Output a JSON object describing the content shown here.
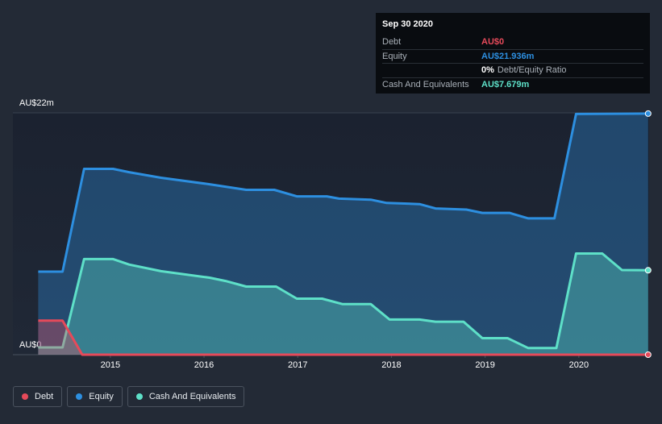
{
  "chart_data": {
    "type": "area-line",
    "xlim": [
      2013.96,
      2020.75
    ],
    "xticks": [
      2015,
      2016,
      2017,
      2018,
      2019,
      2020
    ],
    "ylim": [
      0,
      22
    ],
    "yticks": [
      {
        "value": 22,
        "label": "AU$22m"
      },
      {
        "value": 0,
        "label": "AU$0"
      }
    ],
    "series": [
      {
        "name": "Debt",
        "color": "#e64a5a",
        "x": [
          2014.23,
          2014.49,
          2014.7,
          2020.74
        ],
        "values": [
          3.1,
          3.1,
          0,
          0
        ]
      },
      {
        "name": "Equity",
        "color": "#2d8fe0",
        "x": [
          2014.23,
          2014.49,
          2014.72,
          2015.03,
          2015.2,
          2015.54,
          2016.06,
          2016.45,
          2016.75,
          2016.99,
          2017.31,
          2017.44,
          2017.78,
          2017.95,
          2018.3,
          2018.47,
          2018.8,
          2018.97,
          2019.26,
          2019.46,
          2019.74,
          2019.97,
          2020.74
        ],
        "values": [
          7.55,
          7.55,
          16.9,
          16.9,
          16.6,
          16.1,
          15.5,
          15.0,
          15.0,
          14.4,
          14.4,
          14.2,
          14.1,
          13.8,
          13.7,
          13.3,
          13.2,
          12.9,
          12.9,
          12.4,
          12.4,
          21.9,
          21.936
        ]
      },
      {
        "name": "Cash And Equivalents",
        "color": "#5ee0c8",
        "x": [
          2014.23,
          2014.49,
          2014.72,
          2015.03,
          2015.2,
          2015.54,
          2016.06,
          2016.23,
          2016.45,
          2016.77,
          2016.99,
          2017.26,
          2017.48,
          2017.78,
          2017.98,
          2018.3,
          2018.47,
          2018.77,
          2018.97,
          2019.24,
          2019.46,
          2019.76,
          2019.97,
          2020.25,
          2020.46,
          2020.74
        ],
        "values": [
          0.66,
          0.66,
          8.7,
          8.7,
          8.2,
          7.6,
          7.0,
          6.7,
          6.2,
          6.2,
          5.1,
          5.1,
          4.6,
          4.6,
          3.2,
          3.2,
          3.0,
          3.0,
          1.5,
          1.5,
          0.6,
          0.6,
          9.2,
          9.2,
          7.7,
          7.679
        ]
      }
    ]
  },
  "tooltip": {
    "date": "Sep 30 2020",
    "rows": [
      {
        "label": "Debt",
        "value": "AU$0"
      },
      {
        "label": "Equity",
        "value": "AU$21.936m"
      },
      {
        "label": "",
        "value": "0%",
        "note": "Debt/Equity Ratio"
      },
      {
        "label": "Cash And Equivalents",
        "value": "AU$7.679m"
      }
    ]
  }
}
